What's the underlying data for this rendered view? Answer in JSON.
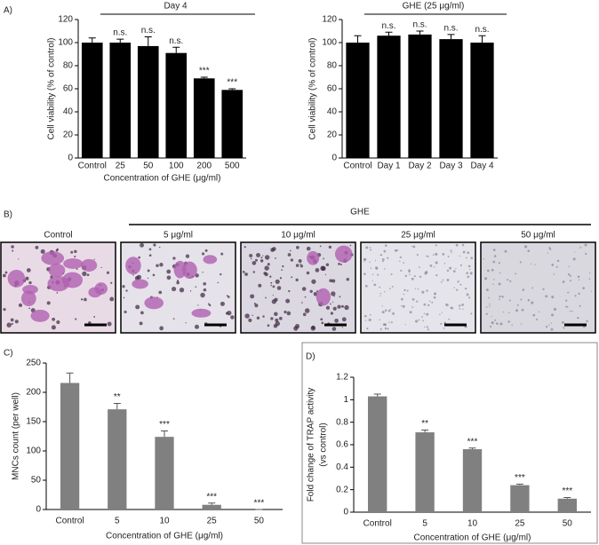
{
  "figure": {
    "panel_labels": [
      "A)",
      "B)",
      "C)",
      "D)"
    ],
    "micrographs": {
      "group_label": "GHE",
      "labels": [
        "Control",
        "5 μg/ml",
        "10 μg/ml",
        "25 μg/ml",
        "50 μg/ml"
      ]
    }
  },
  "chart_data": [
    {
      "type": "bar",
      "title": "Day 4",
      "xlabel": "Concentration of GHE (μg/ml)",
      "ylabel": [
        "Cell viability (% of control)"
      ],
      "categories": [
        "Control",
        "25",
        "50",
        "100",
        "200",
        "500"
      ],
      "values": [
        100,
        100,
        97,
        91,
        69,
        59
      ],
      "errors": [
        4,
        3,
        8,
        5,
        1,
        1
      ],
      "significance": [
        null,
        "n.s.",
        "n.s.",
        "n.s.",
        "***",
        "***"
      ],
      "color": "#000000",
      "ylim": [
        0,
        120
      ],
      "yticks": [
        0,
        20,
        40,
        60,
        80,
        100,
        120
      ]
    },
    {
      "type": "bar",
      "title": "GHE (25 μg/ml)",
      "ylabel": [
        "Cell viability (% of control)"
      ],
      "categories": [
        "Control",
        "Day 1",
        "Day 2",
        "Day 3",
        "Day 4"
      ],
      "values": [
        100,
        106,
        107,
        103,
        100
      ],
      "errors": [
        6,
        3,
        3,
        4,
        6
      ],
      "significance": [
        null,
        "n.s.",
        "n.s.",
        "n.s.",
        "n.s."
      ],
      "color": "#000000",
      "ylim": [
        0,
        120
      ],
      "yticks": [
        0,
        20,
        40,
        60,
        80,
        100,
        120
      ]
    },
    {
      "type": "bar",
      "xlabel": "Concentration of GHE (μg/ml)",
      "ylabel": [
        "MNCs count (per well)"
      ],
      "categories": [
        "Control",
        "5",
        "10",
        "25",
        "50"
      ],
      "values": [
        216,
        171,
        124,
        8,
        0
      ],
      "errors": [
        17,
        10,
        10,
        3,
        0
      ],
      "significance": [
        null,
        "**",
        "***",
        "***",
        "***"
      ],
      "color": "#808080",
      "ylim": [
        0,
        250
      ],
      "yticks": [
        0,
        50,
        100,
        150,
        200,
        250
      ]
    },
    {
      "type": "bar",
      "xlabel": "Concentration of GHE (μg/ml)",
      "ylabel": [
        "Fold change of TRAP activity",
        "(vs control)"
      ],
      "categories": [
        "Control",
        "5",
        "10",
        "25",
        "50"
      ],
      "values": [
        1.03,
        0.71,
        0.56,
        0.24,
        0.12
      ],
      "errors": [
        0.02,
        0.02,
        0.01,
        0.01,
        0.01
      ],
      "significance": [
        null,
        "**",
        "***",
        "***",
        "***"
      ],
      "color": "#808080",
      "ylim": [
        0,
        1.2
      ],
      "yticks": [
        0,
        0.2,
        0.4,
        0.6,
        0.8,
        1,
        1.2
      ]
    }
  ]
}
